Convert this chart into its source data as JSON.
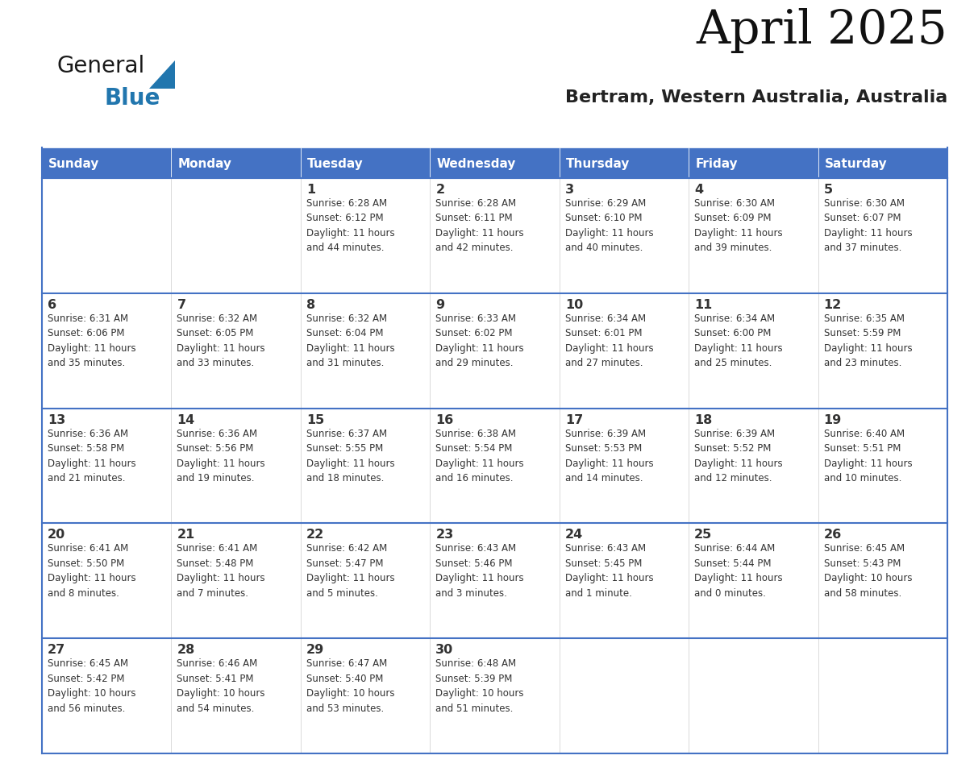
{
  "title": "April 2025",
  "subtitle": "Bertram, Western Australia, Australia",
  "header_bg": "#4472C4",
  "header_text_color": "#FFFFFF",
  "cell_text_color": "#333333",
  "border_color": "#4472C4",
  "bg_color": "#FFFFFF",
  "days_of_week": [
    "Sunday",
    "Monday",
    "Tuesday",
    "Wednesday",
    "Thursday",
    "Friday",
    "Saturday"
  ],
  "weeks": [
    [
      {
        "day": "",
        "info": ""
      },
      {
        "day": "",
        "info": ""
      },
      {
        "day": "1",
        "info": "Sunrise: 6:28 AM\nSunset: 6:12 PM\nDaylight: 11 hours\nand 44 minutes."
      },
      {
        "day": "2",
        "info": "Sunrise: 6:28 AM\nSunset: 6:11 PM\nDaylight: 11 hours\nand 42 minutes."
      },
      {
        "day": "3",
        "info": "Sunrise: 6:29 AM\nSunset: 6:10 PM\nDaylight: 11 hours\nand 40 minutes."
      },
      {
        "day": "4",
        "info": "Sunrise: 6:30 AM\nSunset: 6:09 PM\nDaylight: 11 hours\nand 39 minutes."
      },
      {
        "day": "5",
        "info": "Sunrise: 6:30 AM\nSunset: 6:07 PM\nDaylight: 11 hours\nand 37 minutes."
      }
    ],
    [
      {
        "day": "6",
        "info": "Sunrise: 6:31 AM\nSunset: 6:06 PM\nDaylight: 11 hours\nand 35 minutes."
      },
      {
        "day": "7",
        "info": "Sunrise: 6:32 AM\nSunset: 6:05 PM\nDaylight: 11 hours\nand 33 minutes."
      },
      {
        "day": "8",
        "info": "Sunrise: 6:32 AM\nSunset: 6:04 PM\nDaylight: 11 hours\nand 31 minutes."
      },
      {
        "day": "9",
        "info": "Sunrise: 6:33 AM\nSunset: 6:02 PM\nDaylight: 11 hours\nand 29 minutes."
      },
      {
        "day": "10",
        "info": "Sunrise: 6:34 AM\nSunset: 6:01 PM\nDaylight: 11 hours\nand 27 minutes."
      },
      {
        "day": "11",
        "info": "Sunrise: 6:34 AM\nSunset: 6:00 PM\nDaylight: 11 hours\nand 25 minutes."
      },
      {
        "day": "12",
        "info": "Sunrise: 6:35 AM\nSunset: 5:59 PM\nDaylight: 11 hours\nand 23 minutes."
      }
    ],
    [
      {
        "day": "13",
        "info": "Sunrise: 6:36 AM\nSunset: 5:58 PM\nDaylight: 11 hours\nand 21 minutes."
      },
      {
        "day": "14",
        "info": "Sunrise: 6:36 AM\nSunset: 5:56 PM\nDaylight: 11 hours\nand 19 minutes."
      },
      {
        "day": "15",
        "info": "Sunrise: 6:37 AM\nSunset: 5:55 PM\nDaylight: 11 hours\nand 18 minutes."
      },
      {
        "day": "16",
        "info": "Sunrise: 6:38 AM\nSunset: 5:54 PM\nDaylight: 11 hours\nand 16 minutes."
      },
      {
        "day": "17",
        "info": "Sunrise: 6:39 AM\nSunset: 5:53 PM\nDaylight: 11 hours\nand 14 minutes."
      },
      {
        "day": "18",
        "info": "Sunrise: 6:39 AM\nSunset: 5:52 PM\nDaylight: 11 hours\nand 12 minutes."
      },
      {
        "day": "19",
        "info": "Sunrise: 6:40 AM\nSunset: 5:51 PM\nDaylight: 11 hours\nand 10 minutes."
      }
    ],
    [
      {
        "day": "20",
        "info": "Sunrise: 6:41 AM\nSunset: 5:50 PM\nDaylight: 11 hours\nand 8 minutes."
      },
      {
        "day": "21",
        "info": "Sunrise: 6:41 AM\nSunset: 5:48 PM\nDaylight: 11 hours\nand 7 minutes."
      },
      {
        "day": "22",
        "info": "Sunrise: 6:42 AM\nSunset: 5:47 PM\nDaylight: 11 hours\nand 5 minutes."
      },
      {
        "day": "23",
        "info": "Sunrise: 6:43 AM\nSunset: 5:46 PM\nDaylight: 11 hours\nand 3 minutes."
      },
      {
        "day": "24",
        "info": "Sunrise: 6:43 AM\nSunset: 5:45 PM\nDaylight: 11 hours\nand 1 minute."
      },
      {
        "day": "25",
        "info": "Sunrise: 6:44 AM\nSunset: 5:44 PM\nDaylight: 11 hours\nand 0 minutes."
      },
      {
        "day": "26",
        "info": "Sunrise: 6:45 AM\nSunset: 5:43 PM\nDaylight: 10 hours\nand 58 minutes."
      }
    ],
    [
      {
        "day": "27",
        "info": "Sunrise: 6:45 AM\nSunset: 5:42 PM\nDaylight: 10 hours\nand 56 minutes."
      },
      {
        "day": "28",
        "info": "Sunrise: 6:46 AM\nSunset: 5:41 PM\nDaylight: 10 hours\nand 54 minutes."
      },
      {
        "day": "29",
        "info": "Sunrise: 6:47 AM\nSunset: 5:40 PM\nDaylight: 10 hours\nand 53 minutes."
      },
      {
        "day": "30",
        "info": "Sunrise: 6:48 AM\nSunset: 5:39 PM\nDaylight: 10 hours\nand 51 minutes."
      },
      {
        "day": "",
        "info": ""
      },
      {
        "day": "",
        "info": ""
      },
      {
        "day": "",
        "info": ""
      }
    ]
  ],
  "logo_general_color": "#1a1a1a",
  "logo_blue_color": "#2176AE",
  "logo_triangle_color": "#2176AE",
  "title_color": "#111111",
  "subtitle_color": "#222222"
}
